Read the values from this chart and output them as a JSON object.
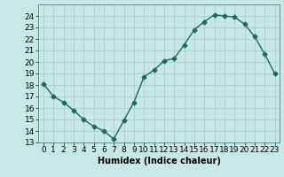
{
  "x": [
    0,
    1,
    2,
    3,
    4,
    5,
    6,
    7,
    8,
    9,
    10,
    11,
    12,
    13,
    14,
    15,
    16,
    17,
    18,
    19,
    20,
    21,
    22,
    23
  ],
  "y": [
    18.1,
    17.0,
    16.5,
    15.8,
    15.0,
    14.4,
    14.0,
    13.3,
    14.9,
    16.5,
    18.7,
    19.3,
    20.1,
    20.3,
    21.5,
    22.8,
    23.5,
    24.1,
    24.0,
    23.9,
    23.3,
    22.2,
    20.7,
    19.0
  ],
  "line_color": "#1a6b5a",
  "bg_color": "#c8e8e5",
  "grid_color": "#a0c8c5",
  "xlabel": "Humidex (Indice chaleur)",
  "ylim": [
    13,
    25
  ],
  "yticks": [
    13,
    14,
    15,
    16,
    17,
    18,
    19,
    20,
    21,
    22,
    23,
    24
  ],
  "xlim": [
    -0.5,
    23.5
  ],
  "xticks": [
    0,
    1,
    2,
    3,
    4,
    5,
    6,
    7,
    8,
    9,
    10,
    11,
    12,
    13,
    14,
    15,
    16,
    17,
    18,
    19,
    20,
    21,
    22,
    23
  ],
  "marker": "D",
  "marker_size": 2.5,
  "line_width": 1.0,
  "xlabel_fontsize": 7,
  "tick_fontsize": 6.5
}
